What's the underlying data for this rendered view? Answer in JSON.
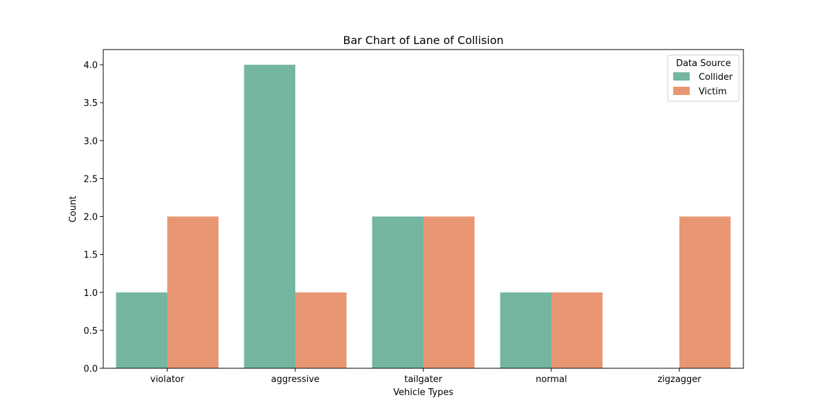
{
  "chart_data": {
    "type": "bar",
    "title": "Bar Chart of Lane of Collision",
    "xlabel": "Vehicle Types",
    "ylabel": "Count",
    "categories": [
      "violator",
      "aggressive",
      "tailgater",
      "normal",
      "zigzagger"
    ],
    "series": [
      {
        "name": "Collider",
        "values": [
          1,
          4,
          2,
          1,
          0
        ],
        "color": "#74b6a1"
      },
      {
        "name": "Victim",
        "values": [
          2,
          1,
          2,
          1,
          2
        ],
        "color": "#e99673"
      }
    ],
    "ylim": [
      0,
      4.2
    ],
    "yticks": [
      "0.0",
      "0.5",
      "1.0",
      "1.5",
      "2.0",
      "2.5",
      "3.0",
      "3.5",
      "4.0"
    ],
    "grid": false,
    "legend": {
      "title": "Data Source",
      "placement": "top-right"
    }
  }
}
